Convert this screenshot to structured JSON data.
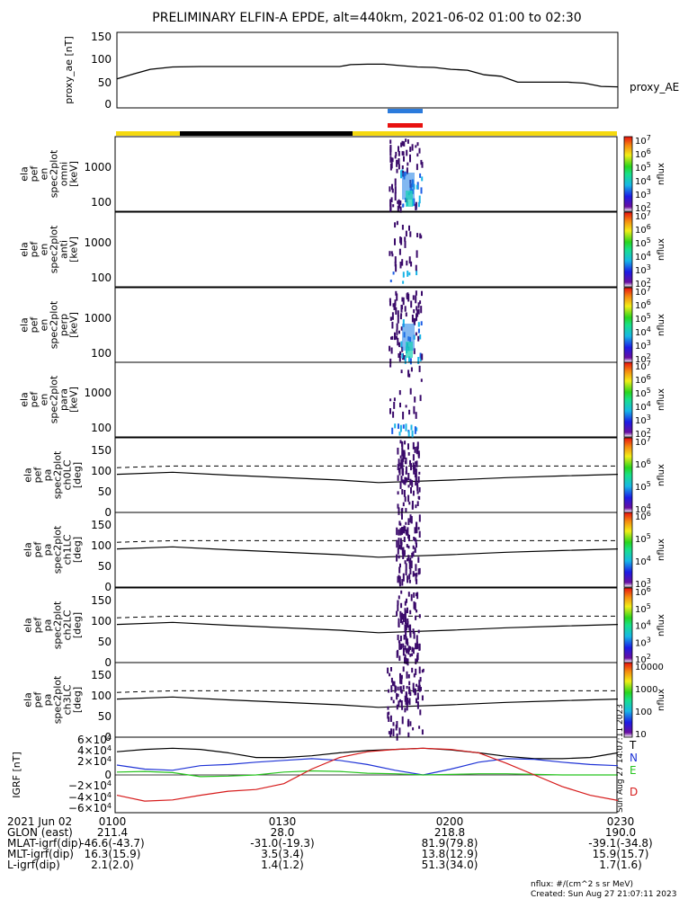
{
  "title": "PRELIMINARY ELFIN-A EPDE, alt=440km, 2021-06-02 01:00 to 02:30",
  "colors": {
    "bar_yellow": "#f5d90f",
    "bar_black": "#000000",
    "bar_blue": "#2b7bdc",
    "bar_red": "#e8110f",
    "igrf_T": "#000000",
    "igrf_N": "#1f33d6",
    "igrf_E": "#26c41d",
    "igrf_D": "#d61a1a"
  },
  "chart_data": [
    {
      "type": "line",
      "ylabel": "proxy_ae [nT]",
      "ylim": [
        0,
        150
      ],
      "yticks": [
        "0",
        "50",
        "100",
        "150"
      ],
      "series": [
        {
          "name": "proxy_AE",
          "x": [
            60,
            63,
            66,
            70,
            75,
            80,
            85,
            90,
            95,
            100,
            102,
            105,
            108,
            111,
            114,
            117,
            120,
            123,
            126,
            129,
            132,
            135,
            138,
            141,
            144,
            147,
            150
          ],
          "values": [
            49,
            60,
            70,
            75,
            76,
            76,
            76,
            76,
            76,
            76,
            80,
            81,
            81,
            78,
            75,
            74,
            70,
            68,
            58,
            55,
            42,
            42,
            42,
            42,
            40,
            33,
            32
          ]
        }
      ]
    },
    {
      "type": "heatmap",
      "panels": [
        {
          "ylabel": "ela pef en spec2plot omni [keV]",
          "yscale": "log",
          "yticks": [
            "100",
            "1000"
          ],
          "cbar_ticks": [
            "10^2",
            "10^3",
            "10^4",
            "10^5",
            "10^6",
            "10^7"
          ],
          "cbar_label": "nflux"
        },
        {
          "ylabel": "ela pef en spec2plot anti [keV]",
          "yscale": "log",
          "yticks": [
            "100",
            "1000"
          ],
          "cbar_ticks": [
            "10^2",
            "10^3",
            "10^4",
            "10^5",
            "10^6",
            "10^7"
          ],
          "cbar_label": "nflux"
        },
        {
          "ylabel": "ela pef en spec2plot perp [keV]",
          "yscale": "log",
          "yticks": [
            "100",
            "1000"
          ],
          "cbar_ticks": [
            "10^2",
            "10^3",
            "10^4",
            "10^5",
            "10^6",
            "10^7"
          ],
          "cbar_label": "nflux"
        },
        {
          "ylabel": "ela pef en spec2plot para [keV]",
          "yscale": "log",
          "yticks": [
            "100",
            "1000"
          ],
          "cbar_ticks": [
            "10^2",
            "10^3",
            "10^4",
            "10^5",
            "10^6",
            "10^7"
          ],
          "cbar_label": "nflux"
        },
        {
          "ylabel": "ela pef pa spec2plot ch0LC [deg]",
          "ylim": [
            0,
            180
          ],
          "yticks": [
            "0",
            "50",
            "100",
            "150"
          ],
          "cbar_ticks": [
            "10^4",
            "10^5",
            "10^6",
            "10^7"
          ],
          "cbar_label": "nflux"
        },
        {
          "ylabel": "ela pef pa spec2plot ch1LC [deg]",
          "ylim": [
            0,
            180
          ],
          "yticks": [
            "0",
            "50",
            "100",
            "150"
          ],
          "cbar_ticks": [
            "10^3",
            "10^4",
            "10^5",
            "10^6"
          ],
          "cbar_label": "nflux"
        },
        {
          "ylabel": "ela pef pa spec2plot ch2LC [deg]",
          "ylim": [
            0,
            180
          ],
          "yticks": [
            "0",
            "50",
            "100",
            "150"
          ],
          "cbar_ticks": [
            "10^2",
            "10^3",
            "10^4",
            "10^5",
            "10^6"
          ],
          "cbar_label": "nflux"
        },
        {
          "ylabel": "ela pef pa spec2plot ch3LC [deg]",
          "ylim": [
            0,
            180
          ],
          "yticks": [
            "0",
            "50",
            "100",
            "150"
          ],
          "cbar_ticks": [
            "10",
            "100",
            "1000",
            "10000"
          ],
          "cbar_label": "nflux"
        }
      ]
    },
    {
      "type": "line",
      "ylabel": "IGRF [nT]",
      "ylim": [
        -65000,
        65000
      ],
      "yticks": [
        "6×10^4",
        "4×10^4",
        "2×10^4",
        "0",
        "−2×10^4",
        "−4×10^4",
        "−6×10^4"
      ],
      "series": [
        {
          "name": "T",
          "x": [
            60,
            65,
            70,
            75,
            80,
            85,
            90,
            95,
            100,
            105,
            110,
            115,
            120,
            125,
            130,
            135,
            140,
            145,
            150
          ],
          "values": [
            40000,
            44000,
            46000,
            44000,
            38000,
            30000,
            30000,
            33000,
            38000,
            42000,
            44000,
            46000,
            43000,
            38000,
            32000,
            28000,
            28000,
            30000,
            38000
          ]
        },
        {
          "name": "N",
          "x": [
            60,
            65,
            70,
            75,
            80,
            85,
            90,
            95,
            100,
            105,
            110,
            115,
            120,
            125,
            130,
            135,
            140,
            145,
            150
          ],
          "values": [
            17000,
            10000,
            8000,
            16000,
            18000,
            22000,
            25000,
            28000,
            25000,
            18000,
            8000,
            0,
            10000,
            22000,
            28000,
            27000,
            22000,
            18000,
            16000
          ]
        },
        {
          "name": "E",
          "x": [
            60,
            65,
            70,
            75,
            80,
            85,
            90,
            95,
            100,
            105,
            110,
            115,
            120,
            125,
            130,
            135,
            140,
            145,
            150
          ],
          "values": [
            5000,
            6000,
            4000,
            -3000,
            -2000,
            0,
            5000,
            7000,
            6000,
            3000,
            2000,
            0,
            1000,
            2000,
            2000,
            1000,
            0,
            0,
            0
          ]
        },
        {
          "name": "D",
          "x": [
            60,
            65,
            70,
            75,
            80,
            85,
            90,
            95,
            100,
            105,
            110,
            115,
            120,
            125,
            130,
            135,
            140,
            145,
            150
          ],
          "values": [
            -35000,
            -45000,
            -43000,
            -35000,
            -28000,
            -25000,
            -15000,
            10000,
            30000,
            40000,
            44000,
            46000,
            44000,
            38000,
            20000,
            0,
            -20000,
            -35000,
            -44000
          ]
        }
      ]
    }
  ],
  "x_ticks": [
    "0100",
    "0130",
    "0200",
    "0230"
  ],
  "footer": {
    "rows": [
      {
        "label": "2021 Jun 02",
        "v1": "0100",
        "v2": "0130",
        "v3": "0200",
        "v4": "0230"
      },
      {
        "label": "GLON (east)",
        "v1": "211.4",
        "v2": "28.0",
        "v3": "218.8",
        "v4": "190.0"
      },
      {
        "label": "MLAT-igrf(dip)",
        "v1": "-46.6(-43.7)",
        "v2": "-31.0(-19.3)",
        "v3": "81.9(79.8)",
        "v4": "-39.1(-34.8)"
      },
      {
        "label": "MLT-igrf(dip)",
        "v1": "16.3(15.9)",
        "v2": "3.5(3.4)",
        "v3": "13.8(12.9)",
        "v4": "15.9(15.7)"
      },
      {
        "label": "L-igrf(dip)",
        "v1": "2.1(2.0)",
        "v2": "1.4(1.2)",
        "v3": "51.3(34.0)",
        "v4": "1.7(1.6)"
      }
    ],
    "nflux_note": "nflux: #/(cm^2 s sr MeV)",
    "created": "Created: Sun Aug 27 21:07:11 2023",
    "side_stamp": "Sun Aug 27 14:07:11 2023"
  }
}
